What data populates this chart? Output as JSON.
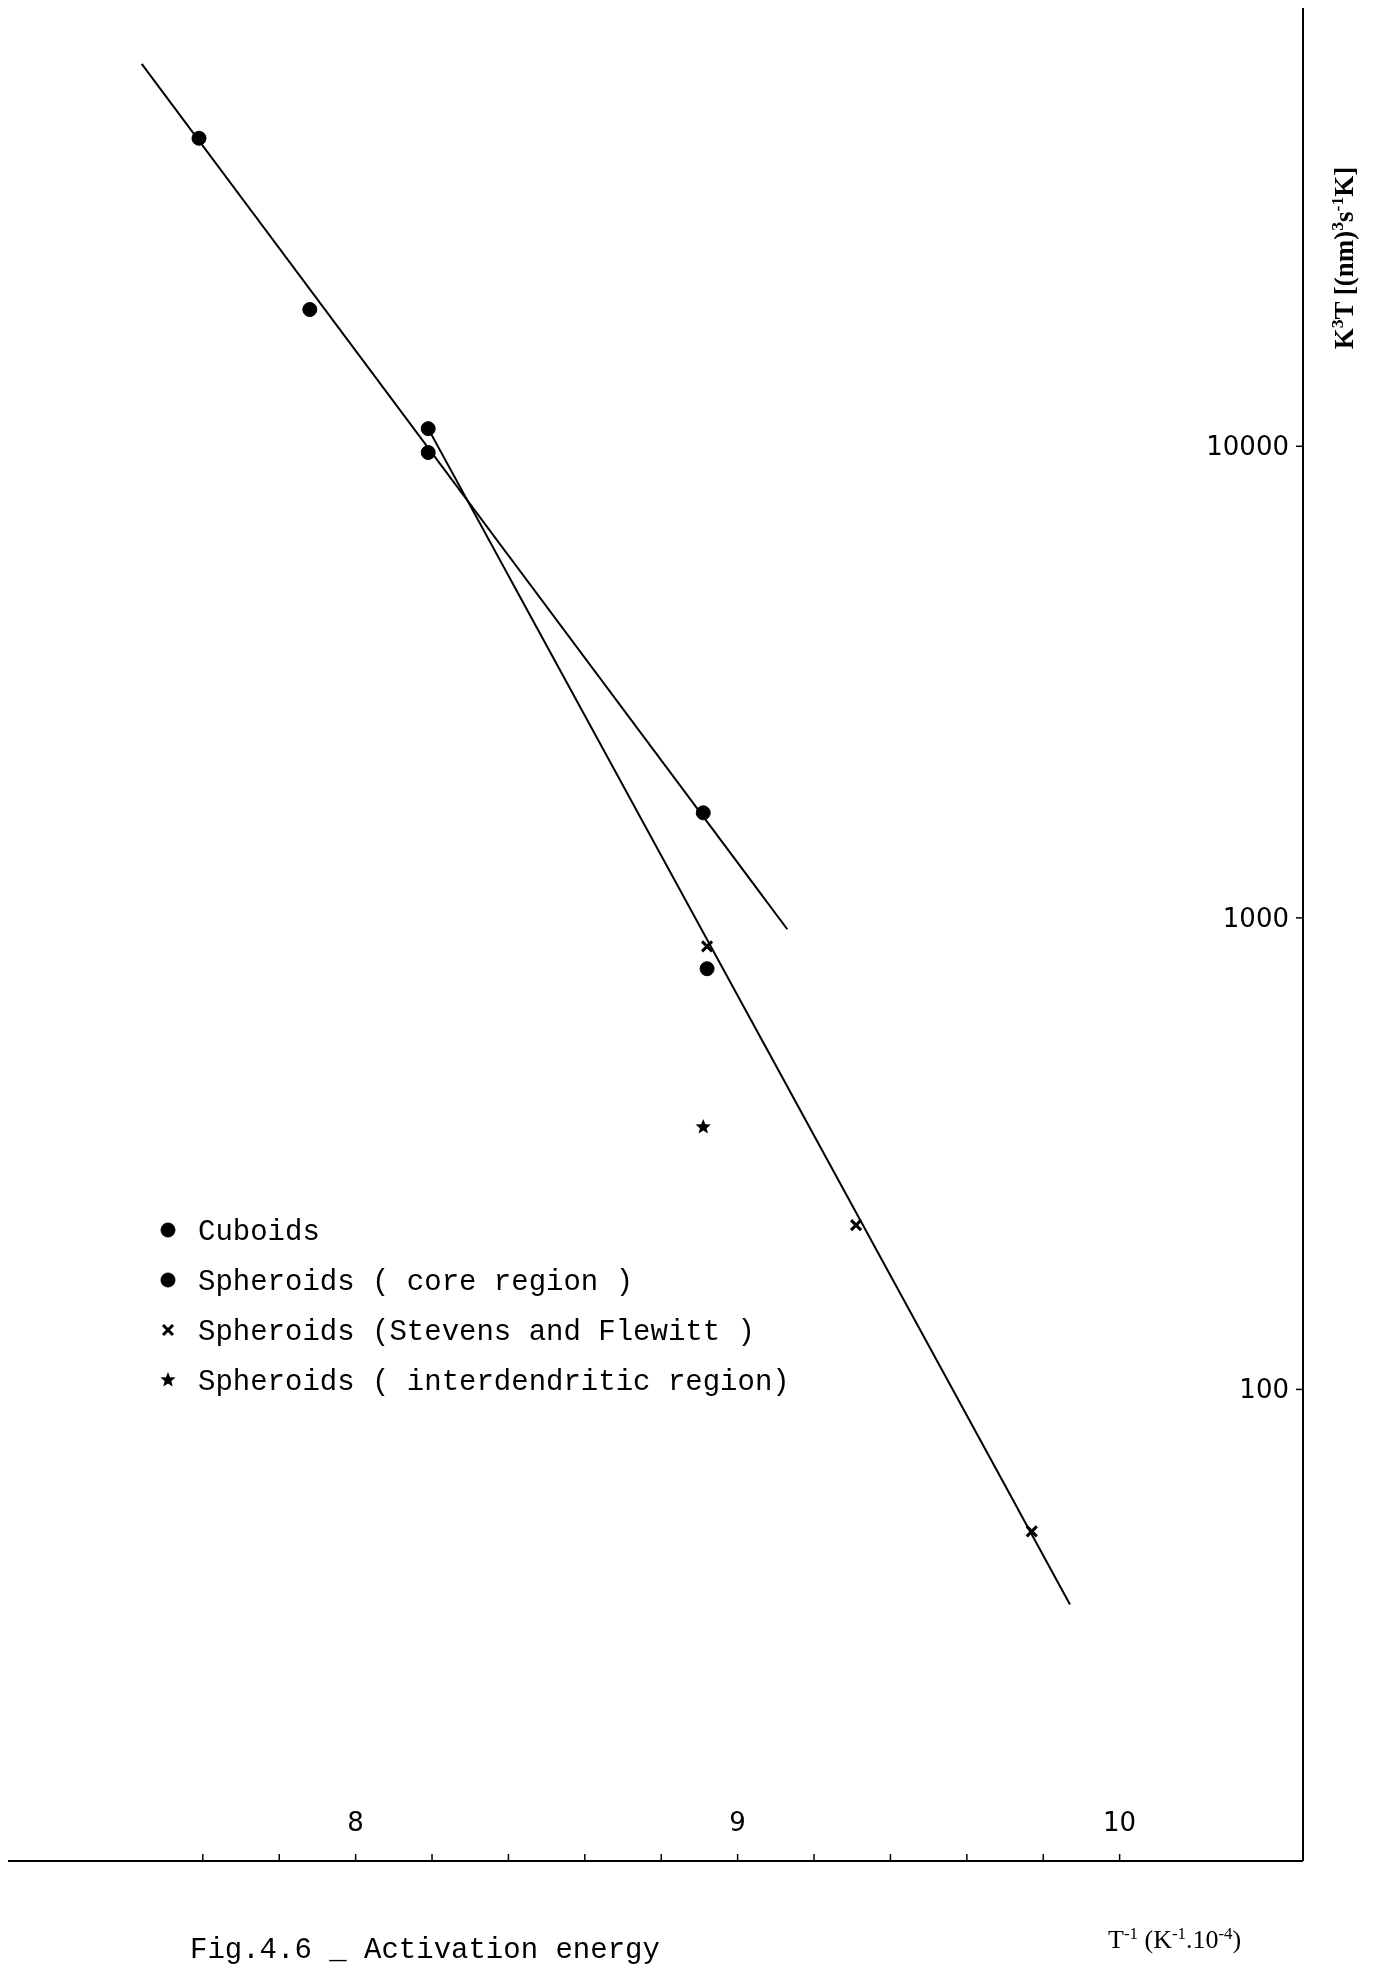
{
  "chart_data": {
    "type": "scatter",
    "xlabel": "T$^{-1}$ (K$^{-1}$.10$^{-4}$)",
    "ylabel": "K$^{3}$T [(nm)$^{3}$s$^{-1}$K]",
    "annotations": [
      "Fig.4.6 _ Activation energy"
    ],
    "xlim": [
      7.09,
      10.48
    ],
    "ylim": [
      10,
      85000
    ],
    "log": "y",
    "xticks": [
      {
        "value": 7.6,
        "label": null
      },
      {
        "value": 7.8,
        "label": null
      },
      8,
      {
        "value": 8.2,
        "label": null
      },
      {
        "value": 8.4,
        "label": null
      },
      {
        "value": 8.6,
        "label": null
      },
      {
        "value": 8.8,
        "label": null
      },
      9,
      {
        "value": 9.2,
        "label": null
      },
      {
        "value": 9.4,
        "label": null
      },
      {
        "value": 9.6,
        "label": null
      },
      {
        "value": 9.8,
        "label": null
      },
      10
    ],
    "yticks": [
      100,
      1000,
      10000
    ],
    "grid": false,
    "legend": "left",
    "series": [
      {
        "name": "Cuboids",
        "color": "#000000",
        "marker": "circle",
        "x": [
          7.59,
          7.88,
          8.19,
          8.91
        ],
        "values": [
          45000,
          19500,
          9700,
          1670
        ]
      },
      {
        "name": "Spheroids ( core region )",
        "color": "#000000",
        "marker": "circle",
        "x": [
          8.19,
          8.92
        ],
        "values": [
          10900,
          780
        ]
      },
      {
        "name": "Spheroids (Stevens and Flewitt )",
        "color": "#000000",
        "marker": "cross",
        "x": [
          8.92,
          9.31,
          9.77
        ],
        "values": [
          870,
          223,
          50
        ]
      },
      {
        "name": "Spheroids ( interdendritic region)",
        "color": "#000000",
        "marker": "star",
        "x": [
          8.91
        ],
        "values": [
          360
        ]
      },
      {
        "type": "line",
        "color": "#000000",
        "line_style": "solid",
        "marker": "none",
        "x": [
          7.44,
          9.13
        ],
        "values": [
          64700,
          946
        ]
      },
      {
        "type": "line",
        "color": "#000000",
        "line_style": "solid",
        "marker": "none",
        "x": [
          8.19,
          9.87
        ],
        "values": [
          10900,
          35
        ]
      }
    ]
  }
}
